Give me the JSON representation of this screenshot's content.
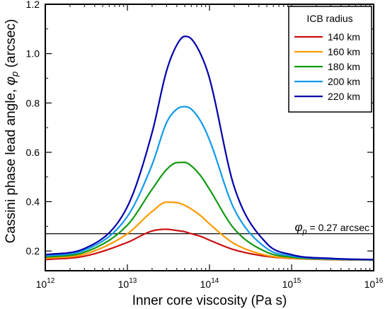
{
  "chart_data": {
    "type": "line",
    "xlabel": "Inner core viscosity (Pa s)",
    "ylabel_prefix": "Cassini phase lead angle, ",
    "ylabel_symbol": "φ",
    "ylabel_subscript": "p",
    "ylabel_suffix": " (arcsec)",
    "x_scale": "log",
    "xlim": [
      1000000000000.0,
      1e+16
    ],
    "ylim": [
      0.12,
      1.2
    ],
    "x_ticks": [
      {
        "value": 1000000000000.0,
        "base": "10",
        "exp": "12"
      },
      {
        "value": 10000000000000.0,
        "base": "10",
        "exp": "13"
      },
      {
        "value": 100000000000000.0,
        "base": "10",
        "exp": "14"
      },
      {
        "value": 1000000000000000.0,
        "base": "10",
        "exp": "15"
      },
      {
        "value": 1e+16,
        "base": "10",
        "exp": "16"
      }
    ],
    "y_ticks": [
      {
        "value": 0.2,
        "label": "0.2"
      },
      {
        "value": 0.4,
        "label": "0.4"
      },
      {
        "value": 0.6,
        "label": "0.6"
      },
      {
        "value": 0.8,
        "label": "0.8"
      },
      {
        "value": 1.0,
        "label": "1.0"
      },
      {
        "value": 1.2,
        "label": "1.2"
      }
    ],
    "grid": false,
    "legend": {
      "title": "ICB radius",
      "placement": "top-right"
    },
    "x": [
      1000000000000.0,
      3000000000000.0,
      10000000000000.0,
      20000000000000.0,
      30000000000000.0,
      40000000000000.0,
      50000000000000.0,
      60000000000000.0,
      80000000000000.0,
      100000000000000.0,
      200000000000000.0,
      500000000000000.0,
      1000000000000000.0,
      3000000000000000.0,
      1e+16
    ],
    "series": [
      {
        "name": "140 km",
        "color": "#cc1111",
        "peak": 0.29,
        "values": [
          0.165,
          0.179,
          0.235,
          0.281,
          0.288,
          0.283,
          0.278,
          0.27,
          0.258,
          0.244,
          0.205,
          0.178,
          0.17,
          0.165,
          0.163
        ]
      },
      {
        "name": "160 km",
        "color": "#ff9900",
        "peak": 0.4,
        "values": [
          0.17,
          0.187,
          0.27,
          0.36,
          0.398,
          0.396,
          0.385,
          0.37,
          0.34,
          0.31,
          0.23,
          0.182,
          0.171,
          0.166,
          0.163
        ]
      },
      {
        "name": "180 km",
        "color": "#119911",
        "peak": 0.56,
        "values": [
          0.175,
          0.195,
          0.305,
          0.45,
          0.53,
          0.558,
          0.559,
          0.545,
          0.5,
          0.45,
          0.29,
          0.195,
          0.175,
          0.167,
          0.164
        ]
      },
      {
        "name": "200 km",
        "color": "#1199ee",
        "peak": 0.785,
        "values": [
          0.18,
          0.203,
          0.34,
          0.55,
          0.72,
          0.775,
          0.785,
          0.775,
          0.72,
          0.65,
          0.37,
          0.21,
          0.18,
          0.168,
          0.164
        ]
      },
      {
        "name": "220 km",
        "color": "#0000aa",
        "peak": 1.07,
        "values": [
          0.185,
          0.21,
          0.38,
          0.68,
          0.93,
          1.035,
          1.07,
          1.06,
          0.99,
          0.9,
          0.46,
          0.23,
          0.185,
          0.17,
          0.165
        ]
      }
    ],
    "reference_line": {
      "value": 0.27,
      "symbol": "φ",
      "subscript": "p",
      "text": " = 0.27 arcsec"
    }
  }
}
